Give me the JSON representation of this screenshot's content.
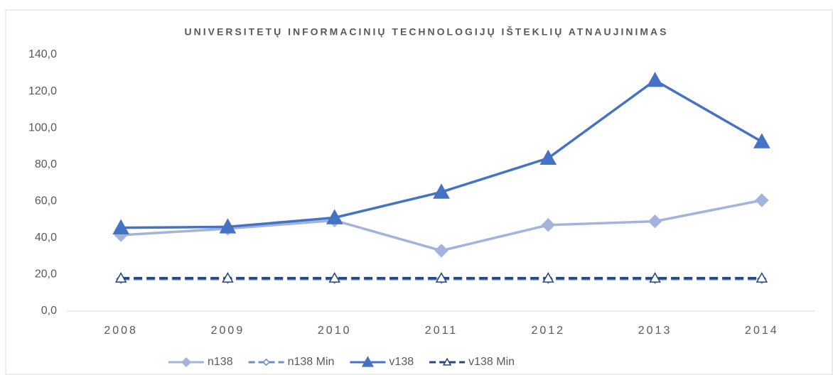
{
  "chart_data": {
    "type": "line",
    "title": "UNIVERSITETŲ INFORMACINIŲ TECHNOLOGIJŲ IŠTEKLIŲ ATNAUJINIMAS",
    "categories": [
      "2008",
      "2009",
      "2010",
      "2011",
      "2012",
      "2013",
      "2014"
    ],
    "series": [
      {
        "name": "n138",
        "color": "#a3b3dd",
        "style": "solid",
        "marker": "diamond",
        "values": [
          41.5,
          45,
          49.5,
          33,
          47,
          49,
          60.5
        ]
      },
      {
        "name": "n138 Min",
        "color": "#6b8dd0",
        "style": "dashed",
        "marker": "hollow-diamond",
        "values": [
          17.5,
          17.5,
          17.5,
          17.5,
          17.5,
          17.5,
          17.5
        ]
      },
      {
        "name": "v138",
        "color": "#4472c4",
        "style": "solid",
        "marker": "triangle",
        "values": [
          45.5,
          46,
          51,
          65,
          83.5,
          126,
          92.5
        ]
      },
      {
        "name": "v138 Min",
        "color": "#27467f",
        "style": "dashed",
        "marker": "hollow-triangle",
        "values": [
          18,
          18,
          18,
          18,
          18,
          18,
          18
        ]
      }
    ],
    "ylim": [
      0,
      140
    ],
    "yticks": [
      {
        "value": 0,
        "label": "0,0"
      },
      {
        "value": 20,
        "label": "20,0"
      },
      {
        "value": 40,
        "label": "40,0"
      },
      {
        "value": 60,
        "label": "60,0"
      },
      {
        "value": 80,
        "label": "80,0"
      },
      {
        "value": 100,
        "label": "100,0"
      },
      {
        "value": 120,
        "label": "120,0"
      },
      {
        "value": 140,
        "label": "140,0"
      }
    ],
    "grid": true,
    "legend": "bottom"
  }
}
